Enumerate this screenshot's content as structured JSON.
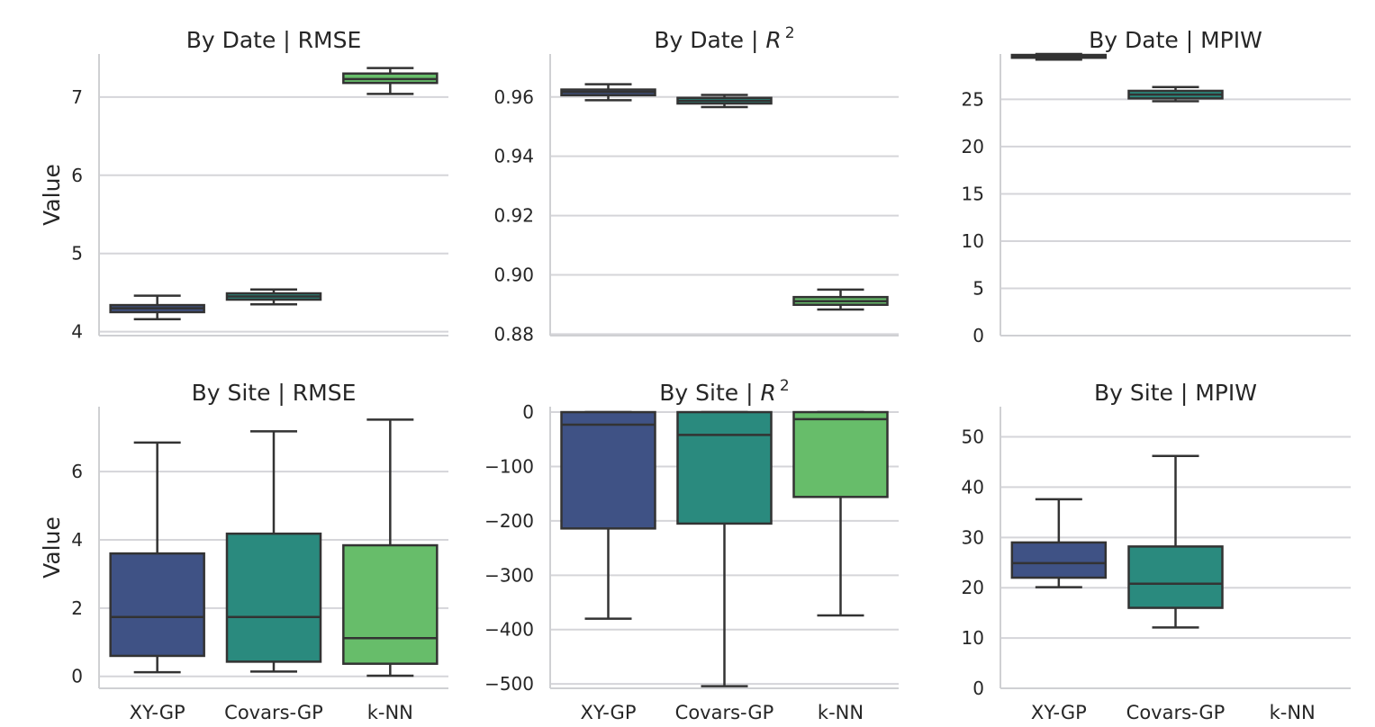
{
  "chart_data": [
    {
      "type": "box",
      "title": "By Date | RMSE",
      "ylabel": "Value",
      "categories": [
        "XY-GP",
        "Covars-GP",
        "k-NN"
      ],
      "ylim": [
        3.95,
        7.55
      ],
      "yticks": [
        "4",
        "5",
        "6",
        "7"
      ],
      "yticks_values": [
        4,
        5,
        6,
        7
      ],
      "show_xticks": false,
      "boxes": [
        {
          "min": 4.16,
          "q1": 4.25,
          "median": 4.3,
          "q3": 4.34,
          "max": 4.46
        },
        {
          "min": 4.35,
          "q1": 4.41,
          "median": 4.45,
          "q3": 4.49,
          "max": 4.54
        },
        {
          "min": 7.04,
          "q1": 7.18,
          "median": 7.23,
          "q3": 7.3,
          "max": 7.37
        }
      ]
    },
    {
      "type": "box",
      "title": "By Date | ",
      "title_math": "R",
      "title_sup": "2",
      "ylabel": "",
      "categories": [
        "XY-GP",
        "Covars-GP",
        "k-NN"
      ],
      "ylim": [
        0.8795,
        0.9745
      ],
      "yticks": [
        "0.88",
        "0.90",
        "0.92",
        "0.94",
        "0.96"
      ],
      "yticks_values": [
        0.88,
        0.9,
        0.92,
        0.94,
        0.96
      ],
      "show_xticks": false,
      "boxes": [
        {
          "min": 0.9589,
          "q1": 0.9606,
          "median": 0.9617,
          "q3": 0.9625,
          "max": 0.9643
        },
        {
          "min": 0.9566,
          "q1": 0.9578,
          "median": 0.9587,
          "q3": 0.9597,
          "max": 0.9607
        },
        {
          "min": 0.8883,
          "q1": 0.8899,
          "median": 0.8911,
          "q3": 0.8925,
          "max": 0.895
        }
      ]
    },
    {
      "type": "box",
      "title": "By Date | MPIW",
      "ylabel": "",
      "categories": [
        "XY-GP",
        "Covars-GP",
        "k-NN"
      ],
      "ylim": [
        0,
        29.8
      ],
      "yticks": [
        "0",
        "5",
        "10",
        "15",
        "20",
        "25"
      ],
      "yticks_values": [
        0,
        5,
        10,
        15,
        20,
        25
      ],
      "show_xticks": false,
      "boxes": [
        {
          "min": 29.2,
          "q1": 29.4,
          "median": 29.55,
          "q3": 29.7,
          "max": 29.8
        },
        {
          "min": 24.8,
          "q1": 25.1,
          "median": 25.5,
          "q3": 25.9,
          "max": 26.3
        },
        null
      ]
    },
    {
      "type": "box",
      "title": "By Site | RMSE",
      "ylabel": "Value",
      "categories": [
        "XY-GP",
        "Covars-GP",
        "k-NN"
      ],
      "ylim": [
        -0.35,
        7.9
      ],
      "yticks": [
        "0",
        "2",
        "4",
        "6"
      ],
      "yticks_values": [
        0,
        2,
        4,
        6
      ],
      "show_xticks": true,
      "boxes": [
        {
          "min": 0.12,
          "q1": 0.6,
          "median": 1.74,
          "q3": 3.6,
          "max": 6.85
        },
        {
          "min": 0.14,
          "q1": 0.43,
          "median": 1.74,
          "q3": 4.18,
          "max": 7.18
        },
        {
          "min": 0.02,
          "q1": 0.37,
          "median": 1.12,
          "q3": 3.84,
          "max": 7.52
        }
      ]
    },
    {
      "type": "box",
      "title": "By Site | ",
      "title_math": "R",
      "title_sup": "2",
      "ylabel": "",
      "categories": [
        "XY-GP",
        "Covars-GP",
        "k-NN"
      ],
      "ylim": [
        -508,
        10
      ],
      "yticks": [
        "0",
        "−100",
        "−200",
        "−300",
        "−400",
        "−500"
      ],
      "yticks_values": [
        0,
        -100,
        -200,
        -300,
        -400,
        -500
      ],
      "show_xticks": true,
      "boxes": [
        {
          "min": -380,
          "q1": -214,
          "median": -23,
          "q3": 0,
          "max": 0
        },
        {
          "min": -504,
          "q1": -205,
          "median": -42,
          "q3": 0,
          "max": 0
        },
        {
          "min": -374,
          "q1": -156,
          "median": -13,
          "q3": 0,
          "max": 0
        }
      ]
    },
    {
      "type": "box",
      "title": "By Site | MPIW",
      "ylabel": "",
      "categories": [
        "XY-GP",
        "Covars-GP",
        "k-NN"
      ],
      "ylim": [
        0,
        56
      ],
      "yticks": [
        "0",
        "10",
        "20",
        "30",
        "40",
        "50"
      ],
      "yticks_values": [
        0,
        10,
        20,
        30,
        40,
        50
      ],
      "show_xticks": true,
      "boxes": [
        {
          "min": 20.1,
          "q1": 22.0,
          "median": 24.9,
          "q3": 29.0,
          "max": 37.6
        },
        {
          "min": 12.1,
          "q1": 16.0,
          "median": 20.8,
          "q3": 28.2,
          "max": 46.2
        },
        null
      ]
    }
  ],
  "colors": {
    "XY-GP": "#3f5285",
    "Covars-GP": "#2a8a7e",
    "k-NN": "#67bd6a"
  }
}
